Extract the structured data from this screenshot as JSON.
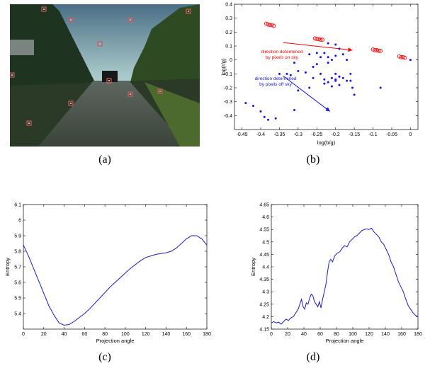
{
  "captions": {
    "a": "(a)",
    "b": "(b)",
    "c": "(c)",
    "d": "(d)"
  },
  "colors": {
    "red": "#ff0000",
    "blue": "#1414e6",
    "line": "#1a1acc"
  },
  "photo": {
    "subject": "road-scene-with-sky-and-trees",
    "marker_count": 11
  },
  "chart_data": [
    {
      "id": "b",
      "type": "scatter",
      "xlabel": "log(b/g)",
      "ylabel": "log(r/g)",
      "xlim": [
        -0.47,
        0.02
      ],
      "ylim": [
        -0.5,
        0.4
      ],
      "xticks": [
        -0.45,
        -0.4,
        -0.35,
        -0.3,
        -0.25,
        -0.2,
        -0.15,
        -0.1,
        -0.05,
        0
      ],
      "xtick_labels": [
        "-0.45",
        "-0.4",
        "-0.35",
        "-0.3",
        "-0.25",
        "-0.2",
        "-0.15",
        "-0.1",
        "-0.05",
        "0"
      ],
      "yticks": [
        -0.4,
        -0.3,
        -0.2,
        -0.1,
        0,
        0.1,
        0.2,
        0.3,
        0.4
      ],
      "ytick_labels": [
        "-0.4",
        "-0.3",
        "-0.2",
        "-0.1",
        "0",
        "0.1",
        "0.2",
        "0.3",
        "0.4"
      ],
      "series": [
        {
          "marker": "open-circle",
          "color": "#ff0000",
          "x": [
            -0.385,
            -0.38,
            -0.375,
            -0.37,
            -0.365,
            -0.255,
            -0.25,
            -0.245,
            -0.24,
            -0.235,
            -0.1,
            -0.095,
            -0.09,
            -0.085,
            -0.08,
            -0.03,
            -0.025,
            -0.02,
            -0.015
          ],
          "y": [
            0.26,
            0.255,
            0.25,
            0.25,
            0.245,
            0.155,
            0.15,
            0.15,
            0.145,
            0.145,
            0.075,
            0.07,
            0.07,
            0.065,
            0.065,
            0.025,
            0.02,
            0.02,
            0.015
          ]
        },
        {
          "marker": "dot",
          "color": "#1414e6",
          "x": [
            -0.22,
            -0.2,
            -0.19,
            -0.25,
            -0.27,
            -0.2,
            -0.21,
            -0.24,
            -0.23,
            -0.18,
            -0.17,
            -0.22,
            -0.26,
            -0.3,
            -0.2,
            -0.19,
            -0.21,
            -0.24,
            -0.25,
            -0.22,
            -0.23,
            -0.26,
            -0.28,
            -0.32,
            -0.31,
            -0.2,
            -0.18,
            -0.16,
            -0.22,
            -0.19,
            -0.21,
            -0.2,
            -0.19,
            -0.15,
            -0.08,
            -0.23,
            -0.17,
            -0.27,
            -0.3,
            -0.33,
            -0.35,
            -0.44,
            -0.42,
            -0.4,
            -0.39,
            -0.38,
            -0.36,
            -0.31,
            -0.16,
            -0.155,
            0.0
          ],
          "y": [
            0.12,
            0.11,
            0.08,
            0.05,
            0.04,
            0.03,
            0.0,
            0.02,
            0.05,
            0.04,
            0.0,
            -0.02,
            -0.05,
            -0.08,
            -0.1,
            -0.12,
            -0.13,
            -0.1,
            -0.03,
            0.02,
            -0.14,
            -0.13,
            -0.09,
            -0.11,
            -0.02,
            -0.15,
            -0.13,
            -0.1,
            -0.16,
            -0.18,
            -0.19,
            -0.14,
            -0.12,
            -0.25,
            -0.2,
            -0.17,
            -0.15,
            -0.2,
            -0.22,
            -0.1,
            -0.1,
            -0.31,
            -0.33,
            -0.37,
            -0.41,
            -0.43,
            -0.42,
            -0.36,
            -0.15,
            -0.2,
            0.0
          ]
        }
      ],
      "annotations": [
        {
          "text": "direction determined",
          "color": "#ff0000"
        },
        {
          "text": "by pixels on sky",
          "color": "#ff0000"
        },
        {
          "text": "direction determined",
          "color": "#1414e6"
        },
        {
          "text": "by pixels off sky",
          "color": "#1414e6"
        }
      ],
      "arrows": [
        {
          "color": "#ff0000",
          "from": [
            -0.34,
            0.125
          ],
          "to": [
            -0.155,
            0.07
          ]
        },
        {
          "color": "#1414e6",
          "from": [
            -0.34,
            -0.115
          ],
          "to": [
            -0.215,
            -0.37
          ]
        }
      ]
    },
    {
      "id": "c",
      "type": "line",
      "xlabel": "Projection angle",
      "ylabel": "Entropy",
      "xlim": [
        0,
        180
      ],
      "ylim": [
        5.3,
        6.1
      ],
      "xticks": [
        0,
        20,
        40,
        60,
        80,
        100,
        120,
        140,
        160,
        180
      ],
      "xtick_labels": [
        "0",
        "20",
        "40",
        "60",
        "80",
        "100",
        "120",
        "140",
        "160",
        "180"
      ],
      "yticks": [
        5.4,
        5.5,
        5.6,
        5.7,
        5.8,
        5.9,
        6.0,
        6.1
      ],
      "ytick_labels": [
        "5.4",
        "5.5",
        "5.6",
        "5.7",
        "5.8",
        "5.9",
        "6",
        "6.1"
      ],
      "x": [
        0,
        5,
        10,
        15,
        20,
        25,
        30,
        35,
        40,
        45,
        50,
        55,
        60,
        65,
        70,
        75,
        80,
        85,
        90,
        95,
        100,
        105,
        110,
        115,
        120,
        125,
        130,
        135,
        140,
        145,
        150,
        155,
        160,
        165,
        170,
        175,
        180
      ],
      "y": [
        5.84,
        5.77,
        5.69,
        5.61,
        5.53,
        5.45,
        5.39,
        5.34,
        5.325,
        5.33,
        5.35,
        5.375,
        5.4,
        5.43,
        5.465,
        5.5,
        5.535,
        5.57,
        5.6,
        5.63,
        5.66,
        5.69,
        5.715,
        5.74,
        5.76,
        5.77,
        5.78,
        5.785,
        5.79,
        5.8,
        5.82,
        5.85,
        5.88,
        5.9,
        5.9,
        5.88,
        5.84
      ]
    },
    {
      "id": "d",
      "type": "line",
      "xlabel": "Projection angle",
      "ylabel": "Entropy",
      "xlim": [
        0,
        180
      ],
      "ylim": [
        4.15,
        4.65
      ],
      "xticks": [
        0,
        20,
        40,
        60,
        80,
        100,
        120,
        140,
        160,
        180
      ],
      "xtick_labels": [
        "0",
        "20",
        "40",
        "60",
        "80",
        "100",
        "120",
        "140",
        "160",
        "180"
      ],
      "yticks": [
        4.15,
        4.2,
        4.25,
        4.3,
        4.35,
        4.4,
        4.45,
        4.5,
        4.55,
        4.6,
        4.65
      ],
      "ytick_labels": [
        "4.15",
        "4.2",
        "4.25",
        "4.3",
        "4.35",
        "4.4",
        "4.45",
        "4.5",
        "4.55",
        "4.6",
        "4.65"
      ],
      "x": [
        0,
        3,
        6,
        9,
        12,
        15,
        18,
        21,
        24,
        27,
        30,
        33,
        35,
        37,
        39,
        41,
        43,
        45,
        47,
        49,
        51,
        53,
        55,
        57,
        59,
        61,
        63,
        65,
        67,
        69,
        71,
        73,
        75,
        78,
        81,
        84,
        87,
        90,
        93,
        96,
        99,
        102,
        105,
        108,
        111,
        114,
        117,
        120,
        123,
        126,
        129,
        132,
        135,
        138,
        141,
        144,
        147,
        150,
        153,
        156,
        159,
        162,
        165,
        168,
        171,
        174,
        177,
        180
      ],
      "y": [
        4.175,
        4.18,
        4.175,
        4.178,
        4.17,
        4.18,
        4.19,
        4.185,
        4.195,
        4.2,
        4.215,
        4.23,
        4.25,
        4.27,
        4.24,
        4.23,
        4.255,
        4.25,
        4.275,
        4.29,
        4.285,
        4.26,
        4.25,
        4.24,
        4.26,
        4.235,
        4.27,
        4.3,
        4.33,
        4.38,
        4.42,
        4.43,
        4.42,
        4.445,
        4.455,
        4.46,
        4.475,
        4.485,
        4.48,
        4.5,
        4.51,
        4.52,
        4.525,
        4.535,
        4.545,
        4.55,
        4.552,
        4.55,
        4.555,
        4.54,
        4.53,
        4.52,
        4.5,
        4.49,
        4.47,
        4.45,
        4.42,
        4.4,
        4.37,
        4.34,
        4.32,
        4.3,
        4.27,
        4.245,
        4.23,
        4.215,
        4.205,
        4.2
      ]
    }
  ]
}
